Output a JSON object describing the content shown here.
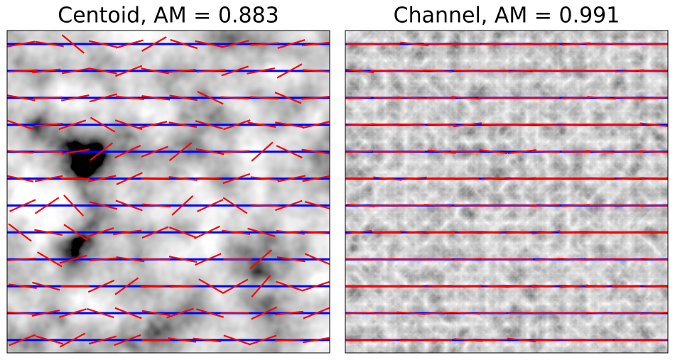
{
  "panels": [
    {
      "title": "Centoid, AM = 0.883"
    },
    {
      "title": "Channel, AM = 0.991"
    }
  ]
}
